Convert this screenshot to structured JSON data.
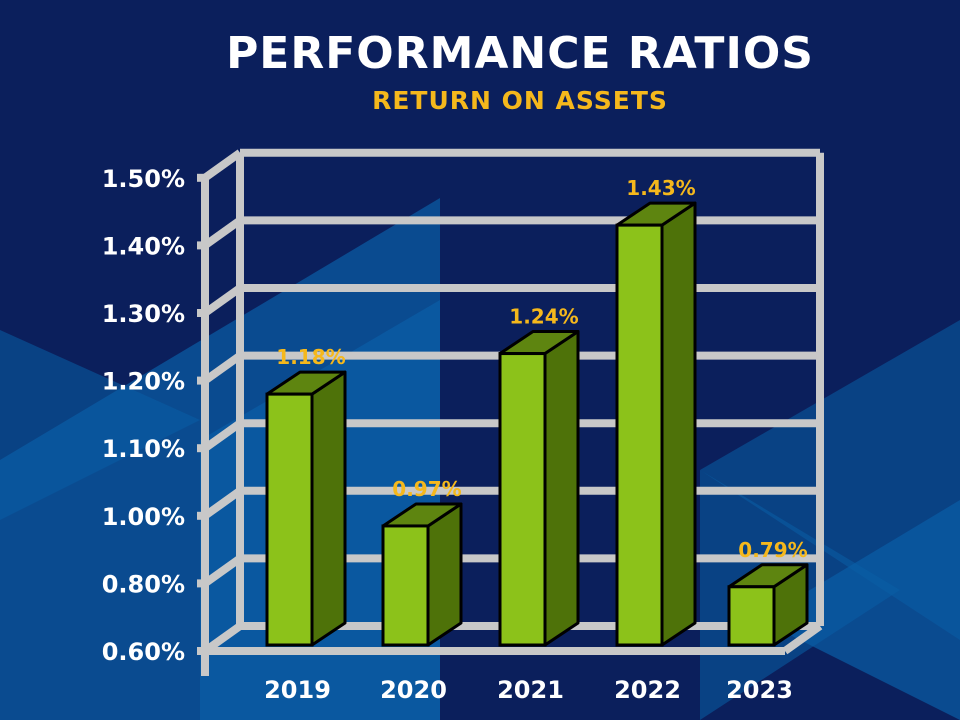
{
  "chart_data": {
    "type": "bar",
    "title": "PERFORMANCE RATIOS",
    "subtitle": "RETURN ON ASSETS",
    "categories": [
      "2019",
      "2020",
      "2021",
      "2022",
      "2023"
    ],
    "values": [
      1.18,
      0.97,
      1.24,
      1.43,
      0.79
    ],
    "data_labels": [
      "1.18%",
      "0.97%",
      "1.24%",
      "1.43%",
      "0.79%"
    ],
    "y_ticks": [
      0.6,
      0.8,
      1.0,
      1.1,
      1.2,
      1.3,
      1.4,
      1.5
    ],
    "y_tick_labels": [
      "0.60%",
      "0.80%",
      "1.00%",
      "1.10%",
      "1.20%",
      "1.30%",
      "1.40%",
      "1.50%"
    ],
    "ylim": [
      0.6,
      1.5
    ],
    "unit": "%",
    "grid": true,
    "style": "3d",
    "colors": {
      "bar_front": "#8cc21a",
      "bar_side": "#4e7209",
      "bar_top": "#5e8510",
      "grid": "#c8c8c8",
      "label": "#f5b81c",
      "background": "#0b1f5c",
      "accent_triangles": "#0a5ea6"
    }
  }
}
